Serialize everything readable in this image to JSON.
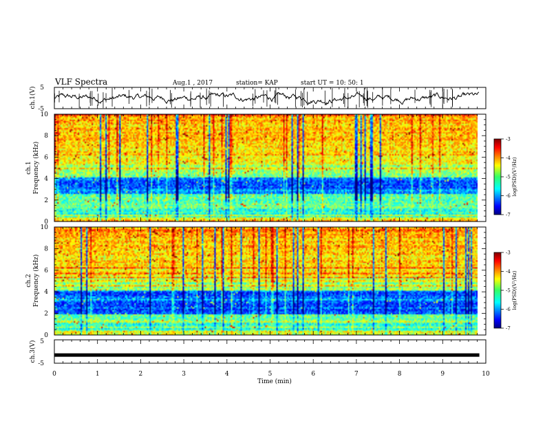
{
  "header": {
    "title": "VLF Spectra",
    "date": "Aug.1  , 2017",
    "station": "station= KAP",
    "start": "start  UT  =   10: 50: 1"
  },
  "chart_data": [
    {
      "type": "line",
      "name": "ch1-waveform",
      "ylabel": "ch.1(V)",
      "ylim": [
        -5,
        5
      ],
      "yticks": [
        "5",
        "-5"
      ],
      "xlim": [
        0,
        10
      ],
      "description_level_range": [
        -3,
        3
      ]
    },
    {
      "type": "heatmap",
      "name": "ch1-spectrogram",
      "ylabel": "ch.1\nFrequency  (kHz)",
      "ylabel_lines": [
        "ch.1",
        "Frequency  (kHz)"
      ],
      "ylim": [
        0,
        10
      ],
      "yticks": [
        "0",
        "2",
        "4",
        "6",
        "8",
        "10"
      ],
      "xlim": [
        0,
        10
      ],
      "data_end_min": 9.85,
      "colorbar": {
        "label": "log(PSD)(V²/Hz)",
        "range": [
          -7,
          -3
        ],
        "ticks": [
          "-3",
          "-4",
          "-5",
          "-6",
          "-7"
        ]
      }
    },
    {
      "type": "heatmap",
      "name": "ch2-spectrogram",
      "ylabel": "ch.2\nFrequency  (kHz)",
      "ylabel_lines": [
        "ch.2",
        "Frequency  (kHz)"
      ],
      "ylim": [
        0,
        10
      ],
      "yticks": [
        "0",
        "2",
        "4",
        "6",
        "8",
        "10"
      ],
      "xlim": [
        0,
        10
      ],
      "data_end_min": 9.85,
      "colorbar": {
        "label": "log(PSD)(V²/Hz)",
        "range": [
          -7,
          -3
        ],
        "ticks": [
          "-3",
          "-4",
          "-5",
          "-6",
          "-7"
        ]
      }
    },
    {
      "type": "line",
      "name": "ch3-waveform",
      "ylabel": "ch.3(V)",
      "ylim": [
        -5,
        5
      ],
      "yticks": [
        "5",
        "0",
        "-5"
      ],
      "xlim": [
        0,
        10
      ],
      "constant_value": -1.5
    }
  ],
  "xaxis": {
    "label": "Time  (min)",
    "ticks": [
      "0",
      "1",
      "2",
      "3",
      "4",
      "5",
      "6",
      "7",
      "8",
      "9",
      "10"
    ]
  }
}
